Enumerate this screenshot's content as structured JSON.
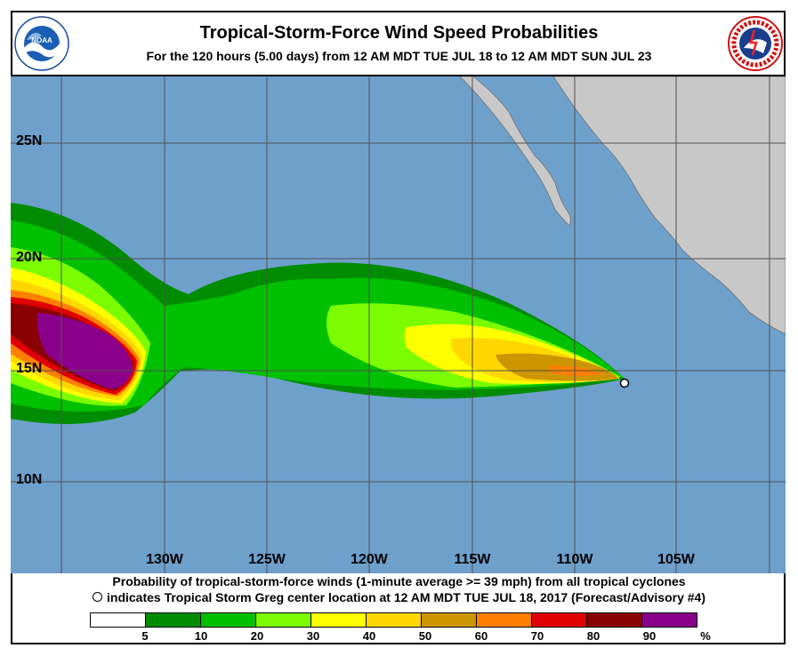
{
  "header": {
    "title": "Tropical-Storm-Force Wind Speed Probabilities",
    "subtitle": "For the 120 hours (5.00 days) from 12 AM MDT TUE JUL 18 to 12 AM MDT SUN JUL 23"
  },
  "logos": {
    "noaa_text": "NOAA",
    "noaa_ring": "NATIONAL OCEANIC AND ATMOSPHERIC ADMINISTRATION · U.S. DEPARTMENT OF COMMERCE",
    "nws_ring": "NATIONAL WEATHER SERVICE"
  },
  "map": {
    "latitude_labels": [
      "25N",
      "20N",
      "15N",
      "10N"
    ],
    "longitude_labels": [
      "130W",
      "125W",
      "120W",
      "115W",
      "110W",
      "105W"
    ],
    "colors": {
      "ocean": "#6ea0cc",
      "land": "#c8c8c8",
      "grid": "#505050",
      "storm_marker": "#ffffff"
    },
    "storm_center": {
      "lat": 14.5,
      "lon": -107.2
    }
  },
  "caption": {
    "line1": "Probability of tropical-storm-force winds (1-minute average >= 39 mph) from all tropical cyclones",
    "line2": "indicates Tropical Storm Greg center location at 12 AM MDT TUE JUL 18, 2017 (Forecast/Advisory #4)"
  },
  "legend": {
    "colors": [
      "#ffffff",
      "#008c00",
      "#00c000",
      "#7cfc00",
      "#ffff00",
      "#ffd700",
      "#cd9500",
      "#ff8000",
      "#e00000",
      "#8b0000",
      "#8b008b"
    ],
    "ticks": [
      "5",
      "10",
      "20",
      "30",
      "40",
      "50",
      "60",
      "70",
      "80",
      "90",
      "%"
    ]
  }
}
